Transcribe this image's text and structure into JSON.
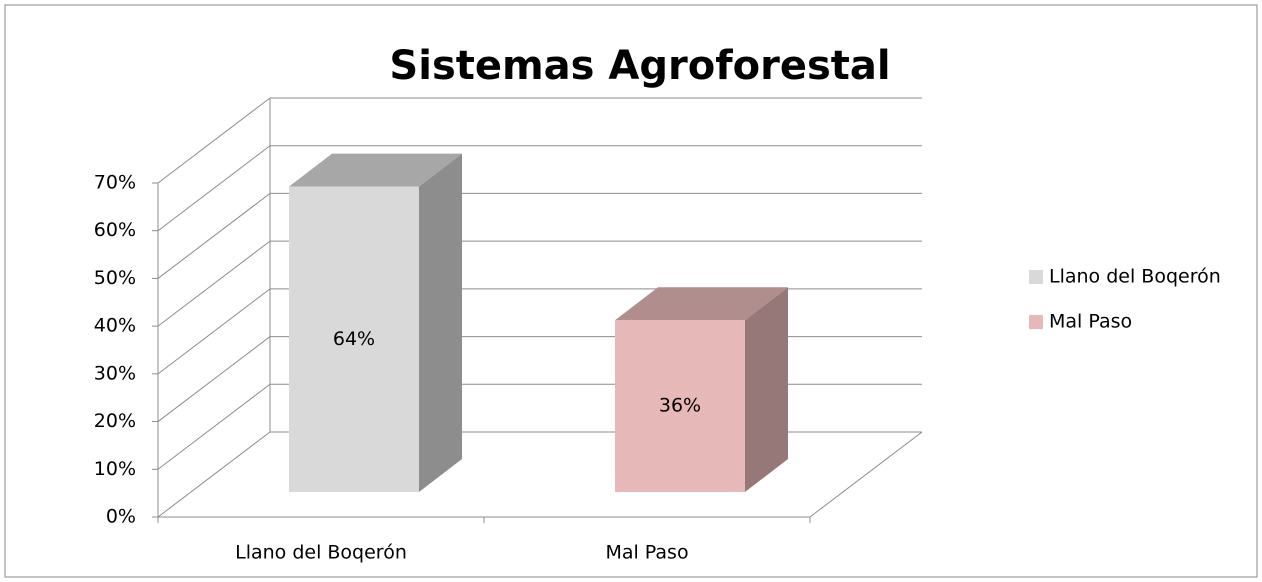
{
  "chart_data": {
    "type": "bar3d",
    "title": "Sistemas Agroforestal",
    "categories": [
      "Llano del Boqerón",
      "Mal Paso"
    ],
    "values": [
      64,
      36
    ],
    "value_labels": [
      "64%",
      "36%"
    ],
    "colors": [
      "#d9d9d9",
      "#e6b9b8"
    ],
    "ylim": [
      0,
      70
    ],
    "yticks": [
      {
        "value": 0,
        "label": "0%"
      },
      {
        "value": 10,
        "label": "10%"
      },
      {
        "value": 20,
        "label": "20%"
      },
      {
        "value": 30,
        "label": "30%"
      },
      {
        "value": 40,
        "label": "40%"
      },
      {
        "value": 50,
        "label": "50%"
      },
      {
        "value": 60,
        "label": "60%"
      },
      {
        "value": 70,
        "label": "70%"
      }
    ],
    "grid": true,
    "legend": "right"
  }
}
